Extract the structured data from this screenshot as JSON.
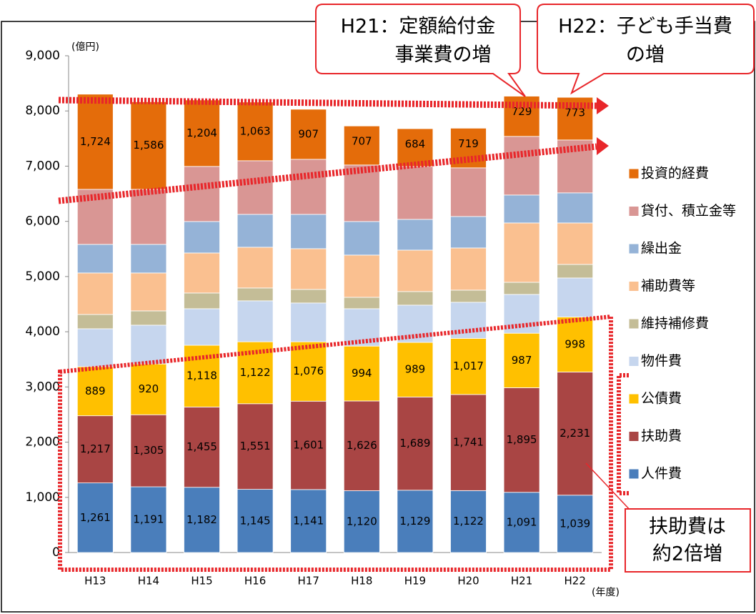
{
  "chart_data": {
    "type": "stacked_bar",
    "y_unit": "(億円)",
    "x_unit": "(年度)",
    "categories": [
      "H13",
      "H14",
      "H15",
      "H16",
      "H17",
      "H18",
      "H19",
      "H20",
      "H21",
      "H22"
    ],
    "ylim": [
      0,
      9000
    ],
    "yticks": [
      0,
      {
        "value": 1000,
        "label": "1,000"
      },
      {
        "value": 2000,
        "label": "2,000"
      },
      {
        "value": 3000,
        "label": "3,000"
      },
      {
        "value": 4000,
        "label": "4,000"
      },
      {
        "value": 5000,
        "label": "5,000"
      },
      {
        "value": 6000,
        "label": "6,000"
      },
      {
        "value": 7000,
        "label": "7,000"
      },
      {
        "value": 8000,
        "label": "8,000"
      },
      {
        "value": 9000,
        "label": "9,000"
      }
    ],
    "series": [
      {
        "name": "人件費",
        "color": "#4a7ebb",
        "values": [
          1261,
          1191,
          1182,
          1145,
          1141,
          1120,
          1129,
          1122,
          1091,
          1039
        ],
        "value_labels": [
          "1,261",
          "1,191",
          "1,182",
          "1,145",
          "1,141",
          "1,120",
          "1,129",
          "1,122",
          "1,091",
          "1,039"
        ]
      },
      {
        "name": "扶助費",
        "color": "#a94544",
        "values": [
          1217,
          1305,
          1455,
          1551,
          1601,
          1626,
          1689,
          1741,
          1895,
          2231
        ],
        "value_labels": [
          "1,217",
          "1,305",
          "1,455",
          "1,551",
          "1,601",
          "1,626",
          "1,689",
          "1,741",
          "1,895",
          "2,231"
        ]
      },
      {
        "name": "公債費",
        "color": "#ffc000",
        "values": [
          889,
          920,
          1118,
          1122,
          1076,
          994,
          989,
          1017,
          987,
          998
        ],
        "value_labels": [
          "889",
          "920",
          "1,118",
          "1,122",
          "1,076",
          "994",
          "989",
          "1,017",
          "987",
          "998"
        ]
      },
      {
        "name": "物件費",
        "color": "#c6d6ee",
        "values": [
          687,
          703,
          662,
          742,
          703,
          677,
          675,
          654,
          703,
          706
        ]
      },
      {
        "name": "維持補修費",
        "color": "#c4bd97",
        "values": [
          259,
          259,
          285,
          233,
          246,
          207,
          246,
          220,
          220,
          246
        ]
      },
      {
        "name": "補助費等",
        "color": "#fac090",
        "values": [
          752,
          687,
          725,
          738,
          738,
          765,
          751,
          764,
          1075,
          751
        ]
      },
      {
        "name": "繰出金",
        "color": "#95b3d7",
        "values": [
          518,
          518,
          570,
          596,
          622,
          608,
          557,
          570,
          506,
          545
        ]
      },
      {
        "name": "貸付、積立金等",
        "color": "#d99694",
        "values": [
          997,
          997,
          998,
          971,
          997,
          1024,
          959,
          881,
          1062,
          958
        ]
      },
      {
        "name": "投資的経費",
        "color": "#e46c0a",
        "values": [
          1724,
          1586,
          1204,
          1063,
          907,
          707,
          684,
          719,
          729,
          773
        ],
        "value_labels": [
          "1,724",
          "1,586",
          "1,204",
          "1,063",
          "907",
          "707",
          "684",
          "719",
          "729",
          "773"
        ]
      }
    ],
    "annotations": [
      {
        "lines": [
          "H21：定額給付金",
          "事業費の増"
        ]
      },
      {
        "lines": [
          "H22：子ども手当費",
          "の増"
        ]
      },
      {
        "lines": [
          "扶助費は",
          "約2倍増"
        ]
      }
    ]
  }
}
